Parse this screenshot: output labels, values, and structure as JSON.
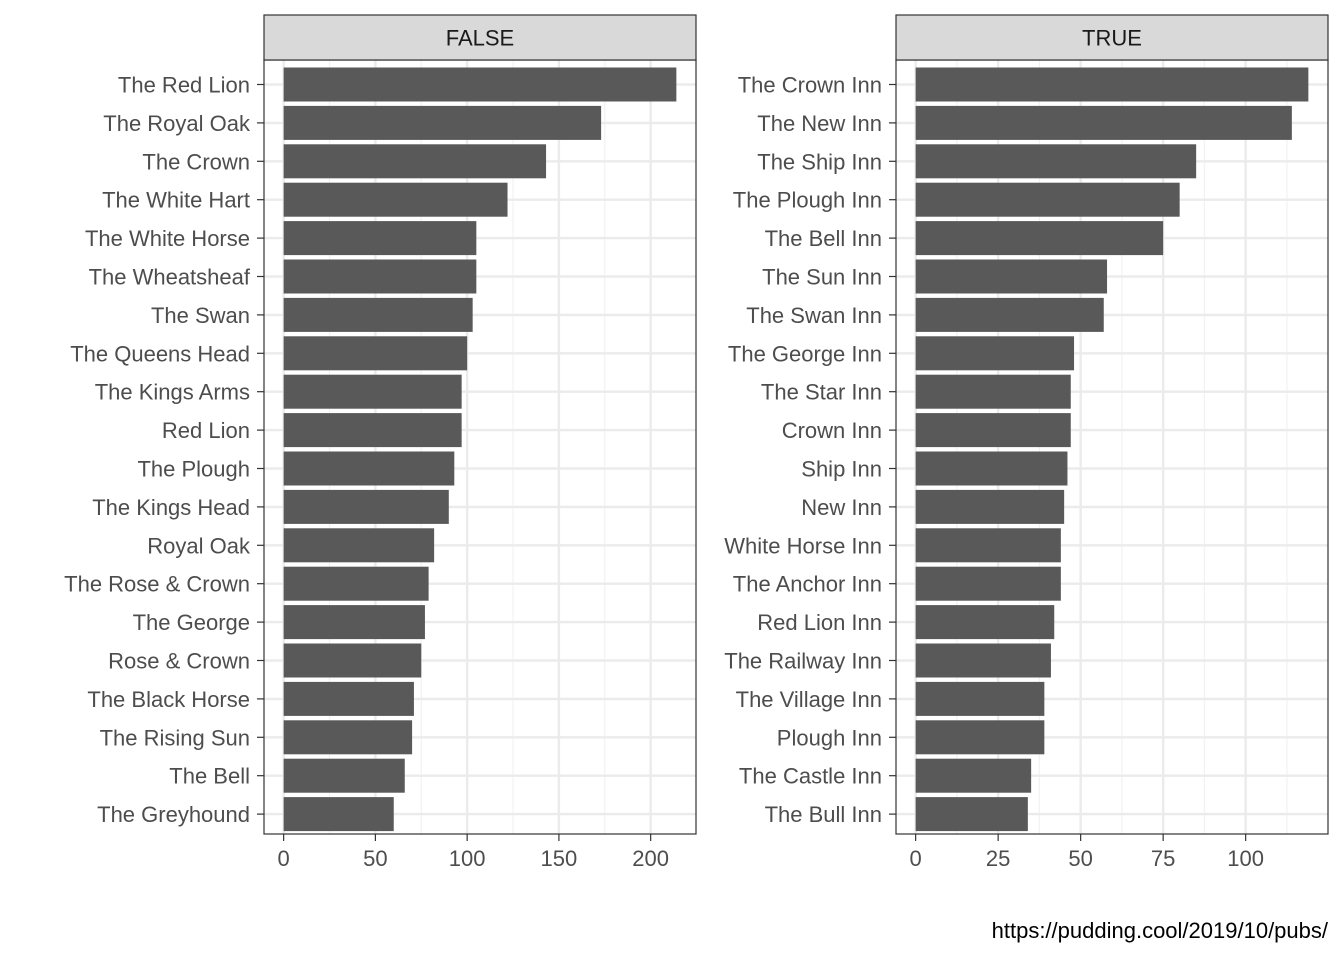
{
  "chart_data": [
    {
      "type": "bar",
      "orientation": "horizontal",
      "facet_label": "FALSE",
      "categories": [
        "The Red Lion",
        "The Royal Oak",
        "The Crown",
        "The White Hart",
        "The White Horse",
        "The Wheatsheaf",
        "The Swan",
        "The Queens Head",
        "The Kings Arms",
        "Red Lion",
        "The Plough",
        "The Kings Head",
        "Royal Oak",
        "The Rose & Crown",
        "The George",
        "Rose & Crown",
        "The Black Horse",
        "The Rising Sun",
        "The Bell",
        "The Greyhound"
      ],
      "values": [
        214,
        173,
        143,
        122,
        105,
        105,
        103,
        100,
        97,
        97,
        93,
        90,
        82,
        79,
        77,
        75,
        71,
        70,
        66,
        60
      ],
      "xlim": [
        -10.7,
        224.7
      ],
      "xticks": [
        0,
        50,
        100,
        150,
        200
      ],
      "grid": true,
      "bar_color": "#595959"
    },
    {
      "type": "bar",
      "orientation": "horizontal",
      "facet_label": "TRUE",
      "categories": [
        "The Crown Inn",
        "The New Inn",
        "The Ship Inn",
        "The Plough Inn",
        "The Bell Inn",
        "The Sun Inn",
        "The Swan Inn",
        "The George Inn",
        "The Star Inn",
        "Crown Inn",
        "Ship Inn",
        "New Inn",
        "White Horse Inn",
        "The Anchor Inn",
        "Red Lion Inn",
        "The Railway Inn",
        "The Village Inn",
        "Plough Inn",
        "The Castle Inn",
        "The Bull Inn"
      ],
      "values": [
        119,
        114,
        85,
        80,
        75,
        58,
        57,
        48,
        47,
        47,
        46,
        45,
        44,
        44,
        42,
        41,
        39,
        39,
        35,
        34
      ],
      "xlim": [
        -5.95,
        124.95
      ],
      "xticks": [
        0,
        25,
        50,
        75,
        100
      ],
      "grid": true,
      "bar_color": "#595959"
    }
  ],
  "caption": "https://pudding.cool/2019/10/pubs/"
}
